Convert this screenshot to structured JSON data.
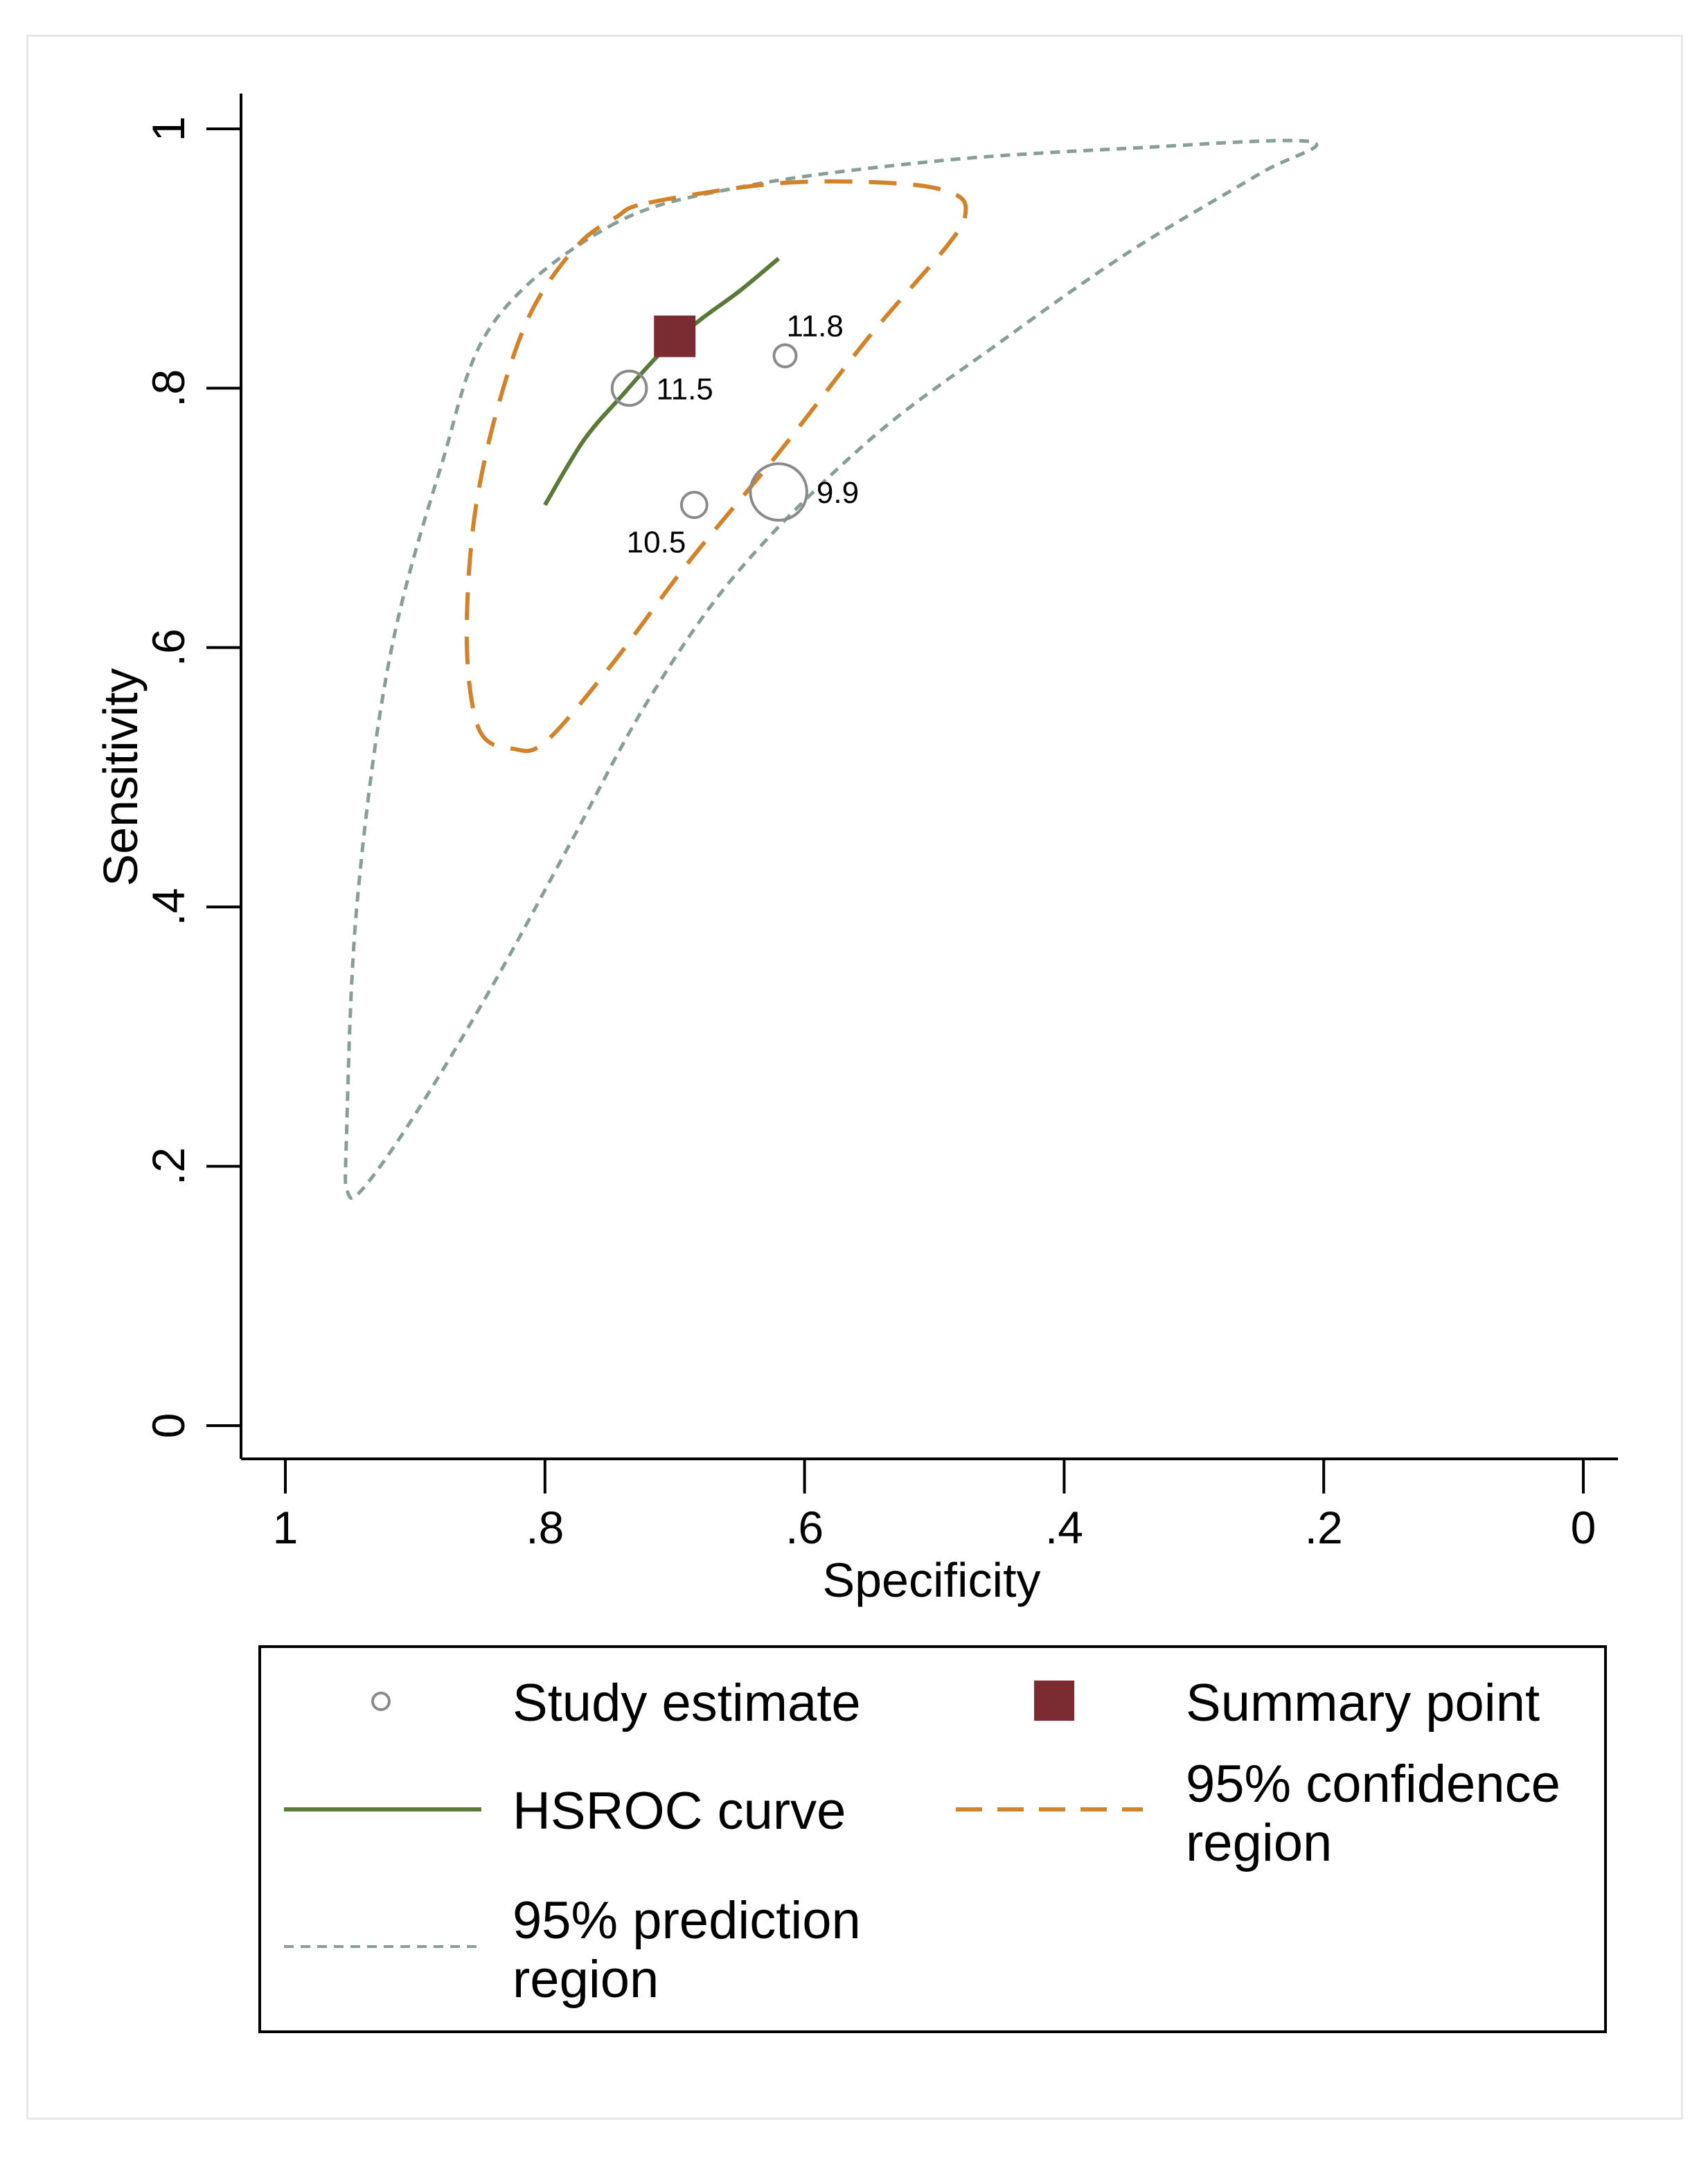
{
  "chart_data": {
    "type": "scatter",
    "title": "",
    "xlabel": "Specificity",
    "ylabel": "Sensitivity",
    "x_reversed": true,
    "xlim": [
      1,
      0
    ],
    "ylim": [
      0,
      1
    ],
    "xticks": [
      {
        "value": 1,
        "label": "1"
      },
      {
        "value": 0.8,
        "label": ".8"
      },
      {
        "value": 0.6,
        "label": ".6"
      },
      {
        "value": 0.4,
        "label": ".4"
      },
      {
        "value": 0.2,
        "label": ".2"
      },
      {
        "value": 0,
        "label": "0"
      }
    ],
    "yticks": [
      {
        "value": 0,
        "label": "0"
      },
      {
        "value": 0.2,
        "label": ".2"
      },
      {
        "value": 0.4,
        "label": ".4"
      },
      {
        "value": 0.6,
        "label": ".6"
      },
      {
        "value": 0.8,
        "label": ".8"
      },
      {
        "value": 1,
        "label": "1"
      }
    ],
    "grid": false,
    "studies": [
      {
        "specificity": 0.735,
        "sensitivity": 0.8,
        "weight_label": "11.5",
        "size": 1.55,
        "label_side": "right"
      },
      {
        "specificity": 0.615,
        "sensitivity": 0.825,
        "weight_label": "11.8",
        "size": 1.0,
        "label_side": "above"
      },
      {
        "specificity": 0.685,
        "sensitivity": 0.71,
        "weight_label": "10.5",
        "size": 1.15,
        "label_side": "below-left"
      },
      {
        "specificity": 0.62,
        "sensitivity": 0.72,
        "weight_label": "9.9",
        "size": 2.55,
        "label_side": "right"
      }
    ],
    "summary_point": {
      "specificity": 0.7,
      "sensitivity": 0.84
    },
    "hsroc_curve": [
      {
        "specificity": 0.8,
        "sensitivity": 0.71
      },
      {
        "specificity": 0.77,
        "sensitivity": 0.76
      },
      {
        "specificity": 0.74,
        "sensitivity": 0.795
      },
      {
        "specificity": 0.71,
        "sensitivity": 0.828
      },
      {
        "specificity": 0.68,
        "sensitivity": 0.853
      },
      {
        "specificity": 0.65,
        "sensitivity": 0.875
      },
      {
        "specificity": 0.62,
        "sensitivity": 0.9
      }
    ],
    "confidence_region": [
      {
        "specificity": 0.72,
        "sensitivity": 0.943
      },
      {
        "specificity": 0.62,
        "sensitivity": 0.958
      },
      {
        "specificity": 0.53,
        "sensitivity": 0.958
      },
      {
        "specificity": 0.485,
        "sensitivity": 0.95
      },
      {
        "specificity": 0.476,
        "sensitivity": 0.935
      },
      {
        "specificity": 0.49,
        "sensitivity": 0.91
      },
      {
        "specificity": 0.55,
        "sensitivity": 0.84
      },
      {
        "specificity": 0.62,
        "sensitivity": 0.75
      },
      {
        "specificity": 0.69,
        "sensitivity": 0.665
      },
      {
        "specificity": 0.75,
        "sensitivity": 0.585
      },
      {
        "specificity": 0.8,
        "sensitivity": 0.527
      },
      {
        "specificity": 0.825,
        "sensitivity": 0.522
      },
      {
        "specificity": 0.848,
        "sensitivity": 0.532
      },
      {
        "specificity": 0.858,
        "sensitivity": 0.57
      },
      {
        "specificity": 0.86,
        "sensitivity": 0.63
      },
      {
        "specificity": 0.853,
        "sensitivity": 0.71
      },
      {
        "specificity": 0.835,
        "sensitivity": 0.79
      },
      {
        "specificity": 0.81,
        "sensitivity": 0.86
      },
      {
        "specificity": 0.775,
        "sensitivity": 0.91
      },
      {
        "specificity": 0.745,
        "sensitivity": 0.932
      }
    ],
    "prediction_region": [
      {
        "specificity": 0.75,
        "sensitivity": 0.925
      },
      {
        "specificity": 0.65,
        "sensitivity": 0.955
      },
      {
        "specificity": 0.5,
        "sensitivity": 0.975
      },
      {
        "specificity": 0.35,
        "sensitivity": 0.985
      },
      {
        "specificity": 0.21,
        "sensitivity": 0.99
      },
      {
        "specificity": 0.25,
        "sensitivity": 0.965
      },
      {
        "specificity": 0.35,
        "sensitivity": 0.905
      },
      {
        "specificity": 0.45,
        "sensitivity": 0.835
      },
      {
        "specificity": 0.55,
        "sensitivity": 0.76
      },
      {
        "specificity": 0.65,
        "sensitivity": 0.66
      },
      {
        "specificity": 0.72,
        "sensitivity": 0.56
      },
      {
        "specificity": 0.78,
        "sensitivity": 0.45
      },
      {
        "specificity": 0.84,
        "sensitivity": 0.34
      },
      {
        "specificity": 0.9,
        "sensitivity": 0.24
      },
      {
        "specificity": 0.94,
        "sensitivity": 0.183
      },
      {
        "specificity": 0.952,
        "sensitivity": 0.18
      },
      {
        "specificity": 0.953,
        "sensitivity": 0.22
      },
      {
        "specificity": 0.945,
        "sensitivity": 0.4
      },
      {
        "specificity": 0.92,
        "sensitivity": 0.59
      },
      {
        "specificity": 0.88,
        "sensitivity": 0.74
      },
      {
        "specificity": 0.84,
        "sensitivity": 0.85
      }
    ],
    "legend": {
      "placement": "bottom",
      "entries": [
        {
          "key": "study",
          "label_lines": [
            "Study estimate"
          ]
        },
        {
          "key": "summary",
          "label_lines": [
            "Summary point"
          ]
        },
        {
          "key": "hsroc",
          "label_lines": [
            "HSROC curve"
          ]
        },
        {
          "key": "confidence",
          "label_lines": [
            "95% confidence",
            "region"
          ]
        },
        {
          "key": "prediction",
          "label_lines": [
            "95% prediction",
            "region"
          ]
        }
      ]
    }
  },
  "colors": {
    "study": "#8a8a8a",
    "summary": "#7b2c33",
    "hsroc": "#5b7a3a",
    "confidence": "#d2832a",
    "prediction": "#8a9e98",
    "axis": "#000000"
  }
}
